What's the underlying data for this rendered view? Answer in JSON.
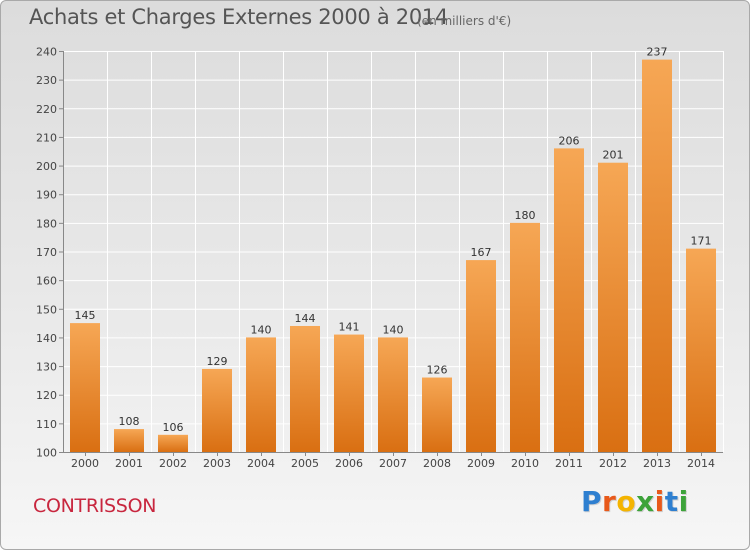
{
  "header": {
    "title": "Achats et Charges Externes 2000 à 2014",
    "subtitle": "(en milliers d'€)"
  },
  "footer": {
    "commune": "CONTRISSON",
    "logo_text": "Proxiti"
  },
  "colors": {
    "bar_light": "#f6a755",
    "bar_dark": "#d96f12",
    "commune_text": "#c8263e",
    "logo_letters": [
      "#2e7fd0",
      "#e8591a",
      "#f4b400",
      "#3da33a",
      "#e8591a",
      "#2e7fd0",
      "#3da33a"
    ]
  },
  "chart_data": {
    "type": "bar",
    "categories": [
      "2000",
      "2001",
      "2002",
      "2003",
      "2004",
      "2005",
      "2006",
      "2007",
      "2008",
      "2009",
      "2010",
      "2011",
      "2012",
      "2013",
      "2014"
    ],
    "values": [
      145,
      108,
      106,
      129,
      140,
      144,
      141,
      140,
      126,
      167,
      180,
      206,
      201,
      237,
      171
    ],
    "title": "Achats et Charges Externes 2000 à 2014",
    "subtitle": "(en milliers d'€)",
    "xlabel": "",
    "ylabel": "",
    "ylim": [
      100,
      240
    ],
    "yticks": [
      100,
      110,
      120,
      130,
      140,
      150,
      160,
      170,
      180,
      190,
      200,
      210,
      220,
      230,
      240
    ],
    "grid": true,
    "data_labels": true
  }
}
